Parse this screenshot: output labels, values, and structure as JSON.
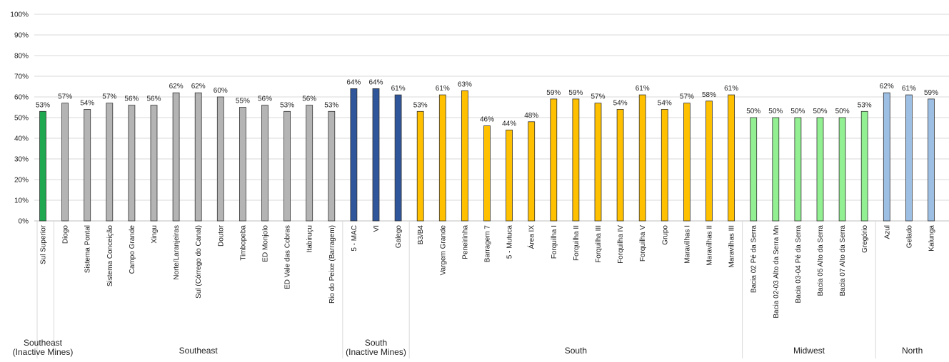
{
  "chart_data": {
    "type": "bar",
    "ylim": [
      0,
      100
    ],
    "y_ticks": [
      "0%",
      "10%",
      "20%",
      "30%",
      "40%",
      "50%",
      "60%",
      "70%",
      "80%",
      "90%",
      "100%"
    ],
    "grid": true,
    "colors": {
      "southeast_inactive": "#1fa84f",
      "southeast": "#b4b4b4",
      "south_inactive": "#2f559a",
      "south": "#ffc000",
      "midwest": "#92f092",
      "north": "#9dbfe3",
      "bar_border": "#333333",
      "gridline": "#d9d9d9",
      "axis": "#bfbfbf"
    },
    "groups": [
      {
        "label": "Southeast\n(Inactive Mines)",
        "color_key": "southeast_inactive",
        "start": 0,
        "count": 1
      },
      {
        "label": "Southeast",
        "color_key": "southeast",
        "start": 1,
        "count": 13
      },
      {
        "label": "South\n(Inactive Mines)",
        "color_key": "south_inactive",
        "start": 14,
        "count": 3
      },
      {
        "label": "South",
        "color_key": "south",
        "start": 17,
        "count": 15
      },
      {
        "label": "Midwest",
        "color_key": "midwest",
        "start": 32,
        "count": 6
      },
      {
        "label": "North",
        "color_key": "north",
        "start": 38,
        "count": 3
      }
    ],
    "categories": [
      "Sul Superior",
      "Diogo",
      "Sistema Pontal",
      "Sistema Conceição",
      "Campo Grande",
      "Xingu",
      "Norte/Laranjeiras",
      "Sul (Córrego do Canal)",
      "Doutor",
      "Timbopeba",
      "ED Monjolo",
      "ED Vale das Cobras",
      "Itabiruçu",
      "Rio do Peixe (Barragem)",
      "5 - MAC",
      "VI",
      "Galego",
      "B3/B4",
      "Vargem Grande",
      "Peneirinha",
      "Barragem 7",
      "5 - Mutuca",
      "Área IX",
      "Forquilha I",
      "Forquilha II",
      "Forquilha III",
      "Forquilha IV",
      "Forquilha V",
      "Grupo",
      "Maravilhas I",
      "Maravilhas II",
      "Maravilhas III",
      "Bacia 02 Pé da Serra",
      "Bacia 02-03 Alto da Serra Mn",
      "Bacia 03-04 Pé da Serra",
      "Bacia 05 Alto da Serra",
      "Bacia 07 Alto da Serra",
      "Gregório",
      "Azul",
      "Gelado",
      "Kalunga"
    ],
    "values": [
      53,
      57,
      54,
      57,
      56,
      56,
      62,
      62,
      60,
      55,
      56,
      53,
      56,
      53,
      64,
      64,
      61,
      53,
      61,
      63,
      46,
      44,
      48,
      59,
      59,
      57,
      54,
      61,
      54,
      57,
      58,
      61,
      50,
      50,
      50,
      50,
      50,
      53,
      62,
      61,
      59
    ],
    "data_labels": [
      "53%",
      "57%",
      "54%",
      "57%",
      "56%",
      "56%",
      "62%",
      "62%",
      "60%",
      "55%",
      "56%",
      "53%",
      "56%",
      "53%",
      "64%",
      "64%",
      "61%",
      "53%",
      "61%",
      "63%",
      "46%",
      "44%",
      "48%",
      "59%",
      "59%",
      "57%",
      "54%",
      "61%",
      "54%",
      "57%",
      "58%",
      "61%",
      "50%",
      "50%",
      "50%",
      "50%",
      "50%",
      "53%",
      "62%",
      "61%",
      "59%"
    ]
  }
}
